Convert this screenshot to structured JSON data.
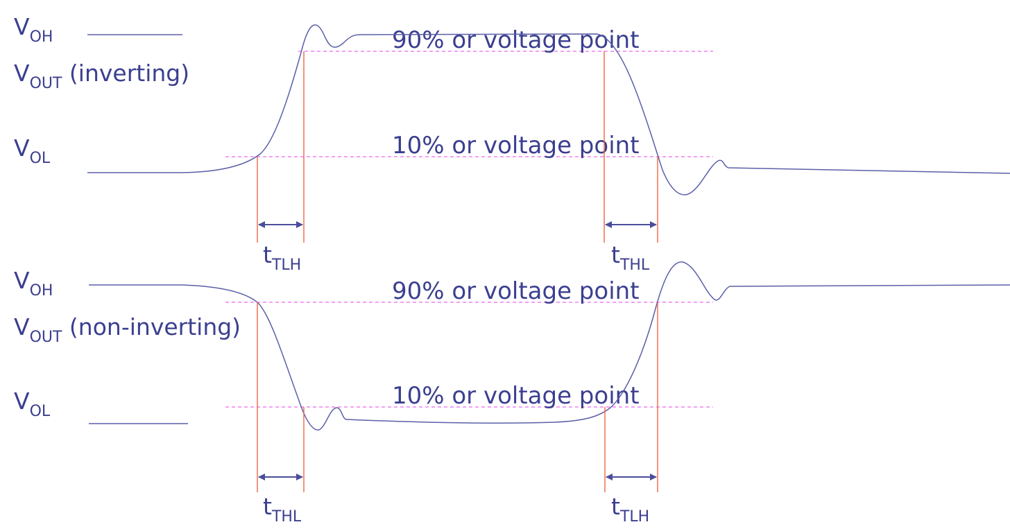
{
  "colors": {
    "text": "#3b3f8f",
    "waveform": "#5a5fa8",
    "threshold": "#ee66ee",
    "marker": "#f07050",
    "arrow": "#4a4e9a"
  },
  "top": {
    "voh": {
      "main": "V",
      "sub": "OH"
    },
    "vout": {
      "main": "V",
      "sub": "OUT",
      "suffix": " (inverting)"
    },
    "vol": {
      "main": "V",
      "sub": "OL"
    },
    "upper_threshold": "90% or voltage point",
    "lower_threshold": "10% or voltage point",
    "timing_left": {
      "main": "t",
      "sub": "TLH"
    },
    "timing_right": {
      "main": "t",
      "sub": "THL"
    }
  },
  "bottom": {
    "voh": {
      "main": "V",
      "sub": "OH"
    },
    "vout": {
      "main": "V",
      "sub": "OUT",
      "suffix": " (non-inverting)"
    },
    "vol": {
      "main": "V",
      "sub": "OL"
    },
    "upper_threshold": "90% or voltage point",
    "lower_threshold": "10% or voltage point",
    "timing_left": {
      "main": "t",
      "sub": "THL"
    },
    "timing_right": {
      "main": "t",
      "sub": "TLH"
    }
  }
}
